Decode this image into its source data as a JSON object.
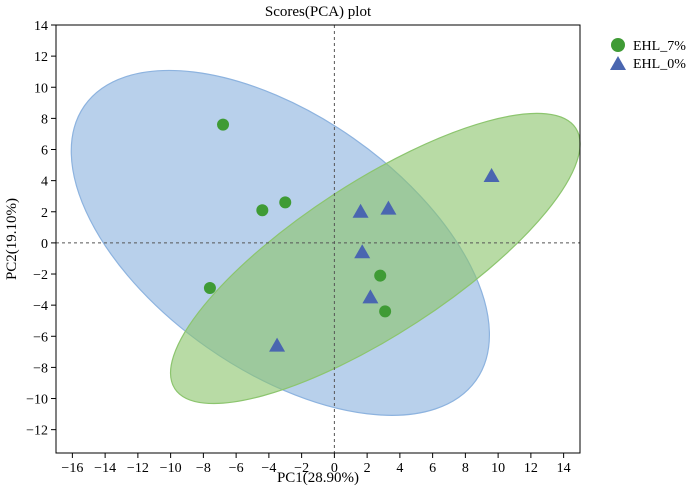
{
  "chart_data": {
    "type": "scatter",
    "title": "Scores(PCA) plot",
    "xlabel": "PC1(28.90%)",
    "ylabel": "PC2(19.10%)",
    "xlim": [
      -17,
      15
    ],
    "ylim": [
      -13.5,
      14
    ],
    "xticks": [
      -16,
      -14,
      -12,
      -10,
      -8,
      -6,
      -4,
      -2,
      0,
      2,
      4,
      6,
      8,
      10,
      12,
      14
    ],
    "yticks": [
      -12,
      -10,
      -8,
      -6,
      -4,
      -2,
      0,
      2,
      4,
      6,
      8,
      10,
      12,
      14
    ],
    "legend_position": "top-right outside",
    "series": [
      {
        "name": "EHL_7%",
        "marker": "circle",
        "color": "#3f9b35",
        "ellipse_color": "#8cc56e",
        "points": [
          [
            -6.8,
            7.6
          ],
          [
            -4.4,
            2.1
          ],
          [
            -3.0,
            2.6
          ],
          [
            -7.6,
            -2.9
          ],
          [
            2.8,
            -2.1
          ],
          [
            3.1,
            -4.4
          ]
        ],
        "ellipse": {
          "cx": 2.5,
          "cy": -1.0,
          "rx": 14.6,
          "ry": 4.9,
          "angle_deg": 33
        }
      },
      {
        "name": "EHL_0%",
        "marker": "triangle",
        "color": "#4a66b0",
        "ellipse_color": "#8db3df",
        "points": [
          [
            9.6,
            4.3
          ],
          [
            1.6,
            2.0
          ],
          [
            3.3,
            2.2
          ],
          [
            1.7,
            -0.6
          ],
          [
            2.2,
            -3.5
          ],
          [
            -3.5,
            -6.6
          ]
        ],
        "ellipse": {
          "cx": -3.3,
          "cy": 0.0,
          "rx": 14.6,
          "ry": 8.2,
          "angle_deg": -35
        }
      }
    ]
  }
}
